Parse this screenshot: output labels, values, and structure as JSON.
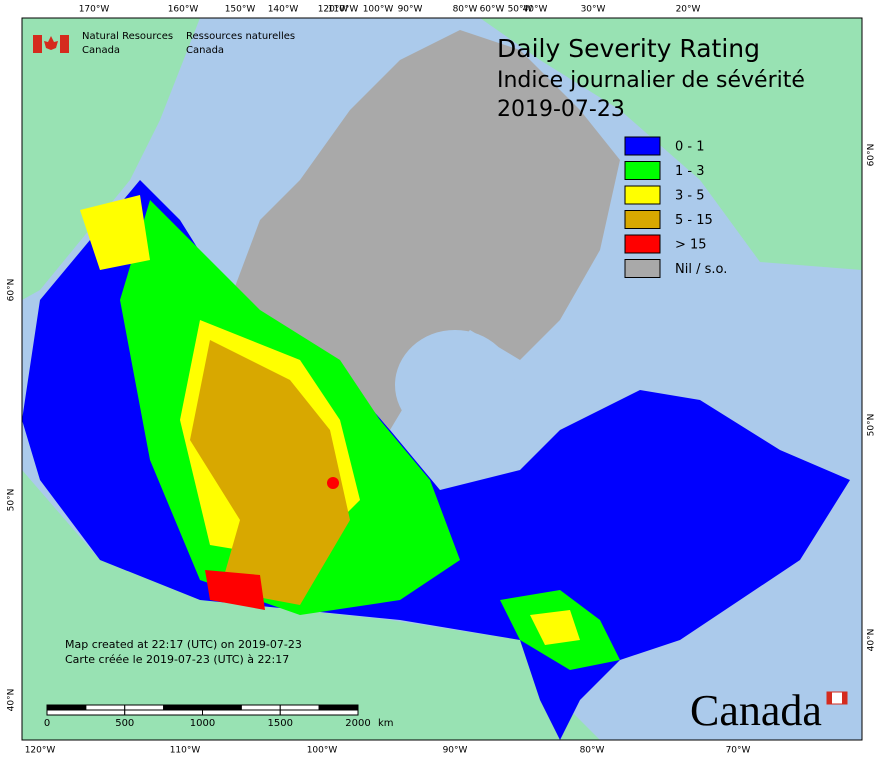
{
  "header": {
    "org_en": [
      "Natural Resources",
      "Canada"
    ],
    "org_fr": [
      "Ressources naturelles",
      "Canada"
    ]
  },
  "title": {
    "line1": "Daily Severity Rating",
    "line2": "Indice journalier de sévérité",
    "date": "2019-07-23"
  },
  "legend": [
    {
      "label": "0 - 1",
      "color": "#0000ff"
    },
    {
      "label": "1 - 3",
      "color": "#00ff00"
    },
    {
      "label": "3 - 5",
      "color": "#ffff00"
    },
    {
      "label": "5 - 15",
      "color": "#d8a800"
    },
    {
      "label": "> 15",
      "color": "#ff0000"
    },
    {
      "label": "Nil / s.o.",
      "color": "#a9a9a9"
    }
  ],
  "graticule": {
    "top": [
      "170°W",
      "160°W",
      "150°W",
      "140°W",
      "120°W",
      "110°W",
      "100°W",
      "90°W",
      "80°W",
      "60°W",
      "50°W",
      "40°W",
      "30°W",
      "20°W"
    ],
    "bottom": [
      "120°W",
      "110°W",
      "100°W",
      "90°W",
      "80°W",
      "70°W"
    ],
    "left": [
      "60°N",
      "50°N",
      "40°N"
    ],
    "right": [
      "60°N",
      "50°N",
      "40°N"
    ]
  },
  "credits": [
    "Map created at 22:17 (UTC) on 2019-07-23",
    "Carte créée le 2019-07-23 (UTC) à 22:17"
  ],
  "scale_bar": {
    "ticks": [
      0,
      500,
      1000,
      1500,
      2000
    ],
    "unit": "km"
  },
  "wordmark": "Canada"
}
